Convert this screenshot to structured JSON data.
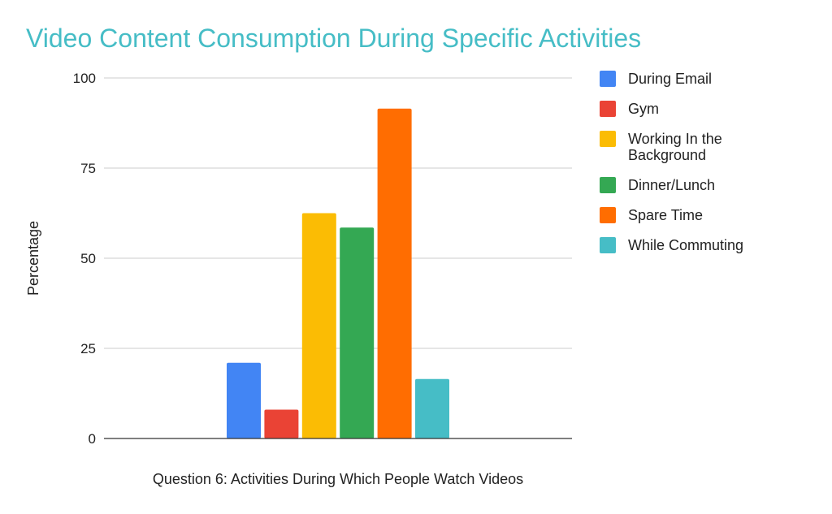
{
  "chart_data": {
    "type": "bar",
    "title": "Video Content Consumption During Specific Activities",
    "xlabel": "Question 6: Activities During Which People Watch Videos",
    "ylabel": "Percentage",
    "ylim": [
      0,
      100
    ],
    "yticks": [
      0,
      25,
      50,
      75,
      100
    ],
    "grid": true,
    "legend_position": "right",
    "categories": [
      ""
    ],
    "series": [
      {
        "name": "During Email",
        "legend_lines": [
          "During Email"
        ],
        "values": [
          21
        ],
        "color": "#4285f4"
      },
      {
        "name": "Gym",
        "legend_lines": [
          "Gym"
        ],
        "values": [
          8
        ],
        "color": "#ea4335"
      },
      {
        "name": "Working In the Background",
        "legend_lines": [
          "Working In the",
          "Background"
        ],
        "values": [
          62.5
        ],
        "color": "#fbbc04"
      },
      {
        "name": "Dinner/Lunch",
        "legend_lines": [
          "Dinner/Lunch"
        ],
        "values": [
          58.5
        ],
        "color": "#34a853"
      },
      {
        "name": "Spare Time",
        "legend_lines": [
          "Spare Time"
        ],
        "values": [
          91.5
        ],
        "color": "#ff6d01"
      },
      {
        "name": "While Commuting",
        "legend_lines": [
          "While Commuting"
        ],
        "values": [
          16.5
        ],
        "color": "#46bdc6"
      }
    ]
  }
}
